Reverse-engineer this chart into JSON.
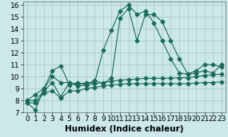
{
  "xlabel": "Humidex (Indice chaleur)",
  "bg_color": "#cce8e8",
  "grid_color": "#aacccc",
  "line_color": "#1a6b5a",
  "xlim": [
    -0.5,
    23.5
  ],
  "ylim": [
    7,
    16.3
  ],
  "xticks": [
    0,
    1,
    2,
    3,
    4,
    5,
    6,
    7,
    8,
    9,
    10,
    11,
    12,
    13,
    14,
    15,
    16,
    17,
    18,
    19,
    20,
    21,
    22,
    23
  ],
  "yticks": [
    7,
    8,
    9,
    10,
    11,
    12,
    13,
    14,
    15,
    16
  ],
  "line1_x": [
    0,
    1,
    2,
    3,
    4,
    5,
    6,
    7,
    8,
    9,
    10,
    11,
    12,
    13,
    14,
    15,
    16,
    17,
    18,
    19,
    20,
    21,
    22,
    23
  ],
  "line1_y": [
    7.8,
    7.2,
    9.0,
    10.5,
    10.9,
    9.3,
    9.5,
    9.3,
    9.7,
    9.4,
    9.9,
    14.9,
    15.7,
    13.0,
    15.2,
    15.2,
    14.6,
    13.0,
    11.5,
    10.2,
    10.3,
    10.5,
    10.3,
    11.0
  ],
  "line2_x": [
    0,
    1,
    2,
    3,
    4,
    5,
    6,
    7,
    8,
    9,
    10,
    11,
    12,
    13,
    14,
    15,
    16,
    17,
    18,
    19,
    20,
    21,
    22,
    23
  ],
  "line2_y": [
    8.0,
    8.0,
    8.8,
    9.5,
    8.3,
    9.5,
    9.2,
    9.3,
    9.4,
    9.5,
    9.6,
    9.7,
    9.75,
    9.8,
    9.85,
    9.85,
    9.85,
    9.85,
    9.9,
    9.9,
    10.0,
    10.1,
    10.15,
    10.2
  ],
  "line3_x": [
    0,
    1,
    2,
    3,
    4,
    5,
    6,
    7,
    8,
    9,
    10,
    11,
    12,
    13,
    14,
    15,
    16,
    17,
    18,
    19,
    20,
    21,
    22,
    23
  ],
  "line3_y": [
    7.8,
    7.8,
    8.6,
    8.8,
    8.2,
    8.8,
    8.8,
    9.0,
    9.1,
    9.2,
    9.3,
    9.35,
    9.4,
    9.4,
    9.4,
    9.4,
    9.4,
    9.4,
    9.4,
    9.4,
    9.45,
    9.5,
    9.5,
    9.55
  ],
  "line4_x": [
    0,
    1,
    2,
    3,
    4,
    5,
    6,
    7,
    8,
    9,
    10,
    11,
    12,
    13,
    14,
    15,
    16,
    17,
    18,
    19,
    20,
    21,
    22,
    23
  ],
  "line4_y": [
    8.0,
    8.5,
    9.0,
    10.0,
    9.5,
    9.5,
    9.3,
    9.5,
    9.5,
    12.2,
    13.9,
    15.5,
    16.0,
    15.2,
    15.5,
    14.5,
    13.0,
    11.5,
    10.3,
    10.2,
    10.5,
    11.0,
    11.0,
    10.8
  ],
  "marker_size": 2.5,
  "lw": 0.8,
  "font_size_label": 7.5,
  "font_size_tick": 6.5
}
